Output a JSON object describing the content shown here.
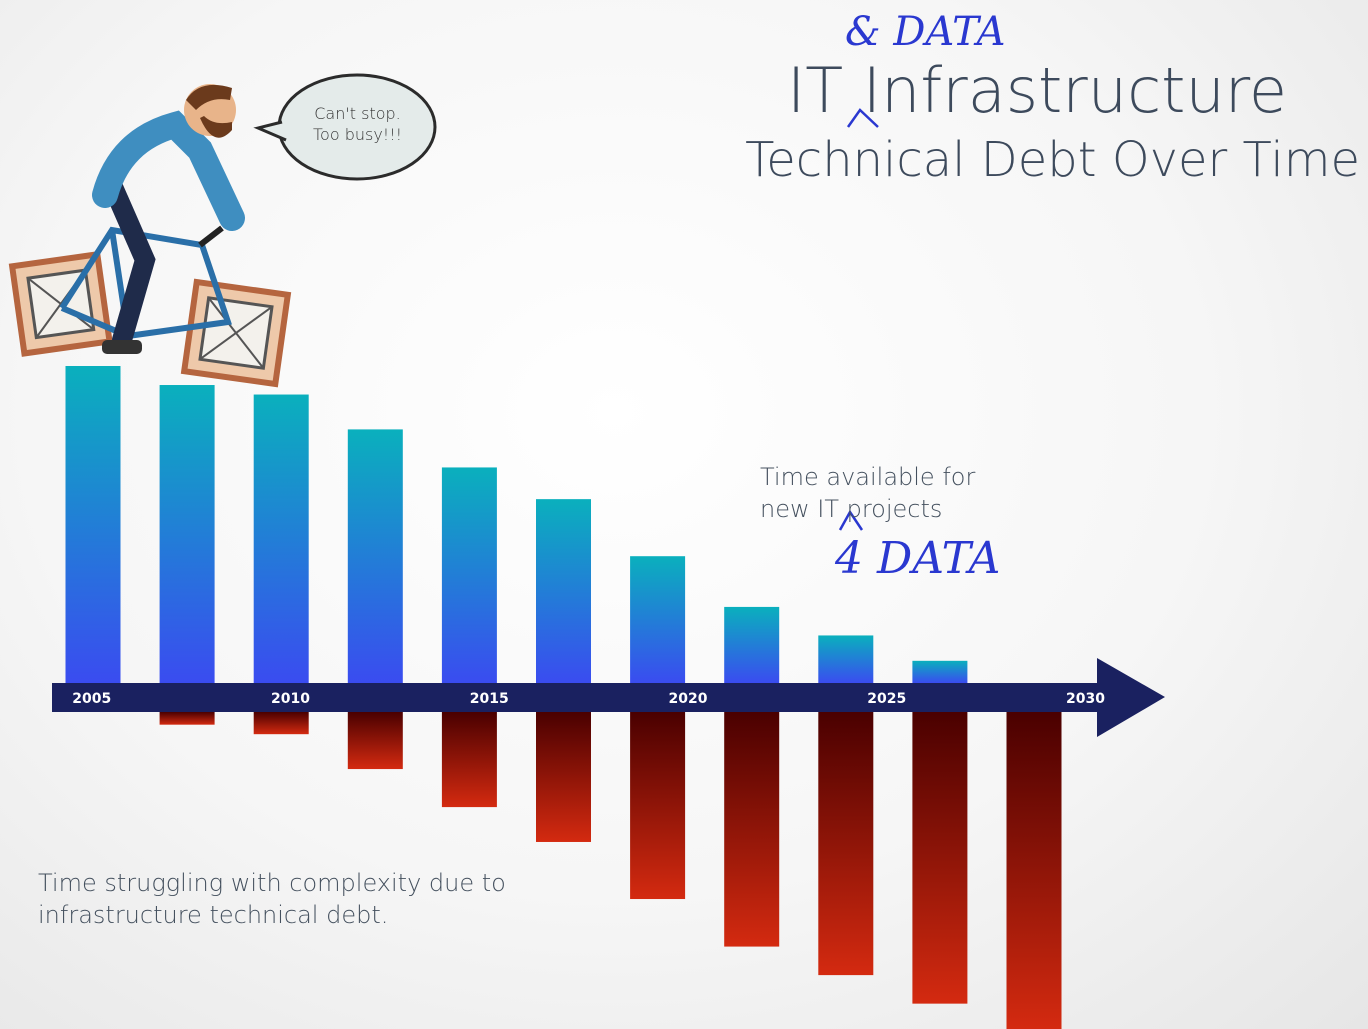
{
  "chart_data": {
    "type": "bar",
    "title": "IT Infrastructure",
    "subtitle": "Technical Debt Over Time",
    "annotations": {
      "title_insert": "& DATA",
      "label_insert": "4 DATA",
      "speech": "Can't stop. Too busy!!!"
    },
    "categories": [
      null,
      null,
      null,
      null,
      null,
      null,
      null,
      null,
      null,
      null,
      null
    ],
    "series": [
      {
        "name": "Time available for new IT projects",
        "colors": [
          "#0ab0bd",
          "#3a4cf0"
        ],
        "values": [
          100,
          94,
          91,
          80,
          68,
          58,
          40,
          24,
          15,
          7,
          0
        ]
      },
      {
        "name": "Time struggling with complexity due to infrastructure technical debt.",
        "colors": [
          "#4a0000",
          "#d42a10"
        ],
        "values": [
          0,
          4,
          7,
          18,
          30,
          41,
          59,
          74,
          83,
          92,
          100
        ]
      }
    ],
    "ylim": [
      0,
      100
    ],
    "xlim": [
      2004,
      2032
    ],
    "xticks": [
      2005,
      2010,
      2015,
      2020,
      2025,
      2030
    ],
    "axis_color": "#1a2160"
  }
}
